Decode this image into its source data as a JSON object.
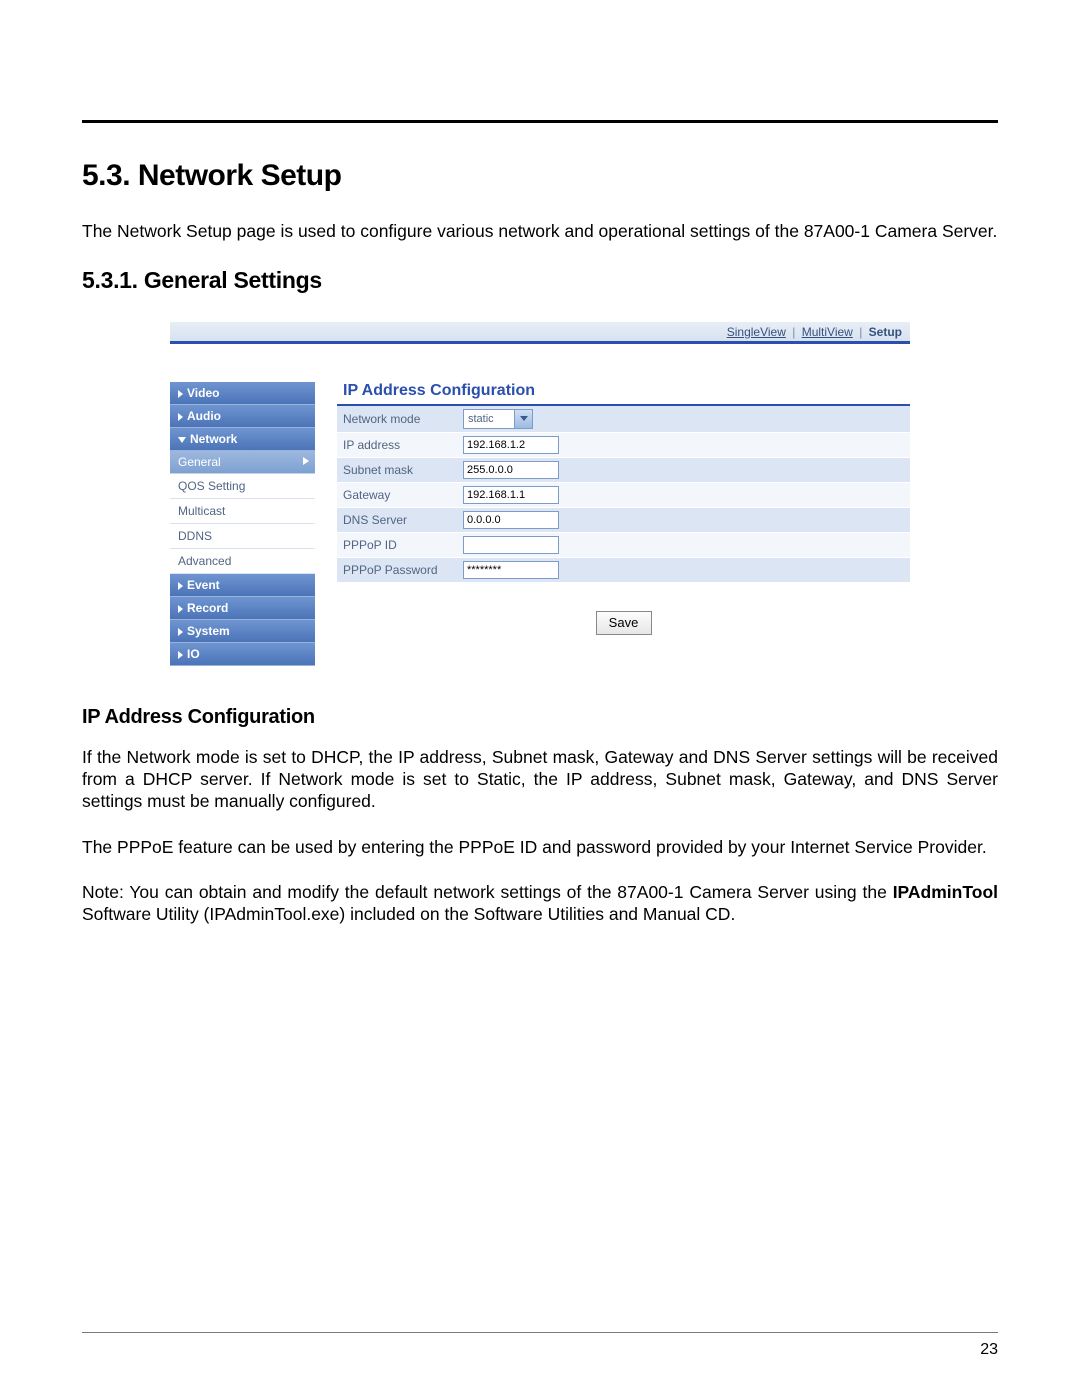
{
  "headings": {
    "h1": "5.3. Network Setup",
    "h2": "5.3.1. General Settings",
    "h3": "IP Address Configuration"
  },
  "paragraphs": {
    "intro": "The Network Setup page is used to configure various network and operational settings of the 87A00-1 Camera Server.",
    "p1": "If the Network mode is set to DHCP, the IP address, Subnet mask, Gateway and DNS Server settings will be received from a DHCP server.  If Network mode is set to Static, the IP address, Subnet mask, Gateway, and DNS Server settings must be manually configured.",
    "p2": "The PPPoE feature can be used by entering the PPPoE ID and password provided by your Internet Service Provider.",
    "note_prefix": "Note: You can obtain and modify the default network settings of the 87A00-1 Camera Server using the ",
    "note_bold": "IPAdminTool",
    "note_suffix": " Software Utility (IPAdminTool.exe) included on the Software Utilities and Manual CD."
  },
  "topnav": {
    "single": "SingleView",
    "multi": "MultiView",
    "setup": "Setup"
  },
  "sidebar": {
    "video": "Video",
    "audio": "Audio",
    "network": "Network",
    "general": "General",
    "qos": "QOS Setting",
    "multicast": "Multicast",
    "ddns": "DDNS",
    "advanced": "Advanced",
    "event": "Event",
    "record": "Record",
    "system": "System",
    "io": "IO"
  },
  "panel": {
    "title": "IP Address Configuration",
    "rows": {
      "network_mode": {
        "label": "Network mode",
        "value": "static"
      },
      "ip_address": {
        "label": "IP address",
        "value": "192.168.1.2"
      },
      "subnet_mask": {
        "label": "Subnet mask",
        "value": "255.0.0.0"
      },
      "gateway": {
        "label": "Gateway",
        "value": "192.168.1.1"
      },
      "dns_server": {
        "label": "DNS Server",
        "value": "0.0.0.0"
      },
      "pppoe_id": {
        "label": "PPPoP ID",
        "value": ""
      },
      "pppoe_pw": {
        "label": "PPPoP Password",
        "value": "********"
      }
    },
    "save": "Save"
  },
  "page_number": "23",
  "colors": {
    "accent": "#2a4fae",
    "nav_grad_top": "#6f95d1",
    "nav_grad_bot": "#4b74b8",
    "row_alt1": "#dbe5f3",
    "row_alt2": "#f3f6fb",
    "label_text": "#516584"
  }
}
